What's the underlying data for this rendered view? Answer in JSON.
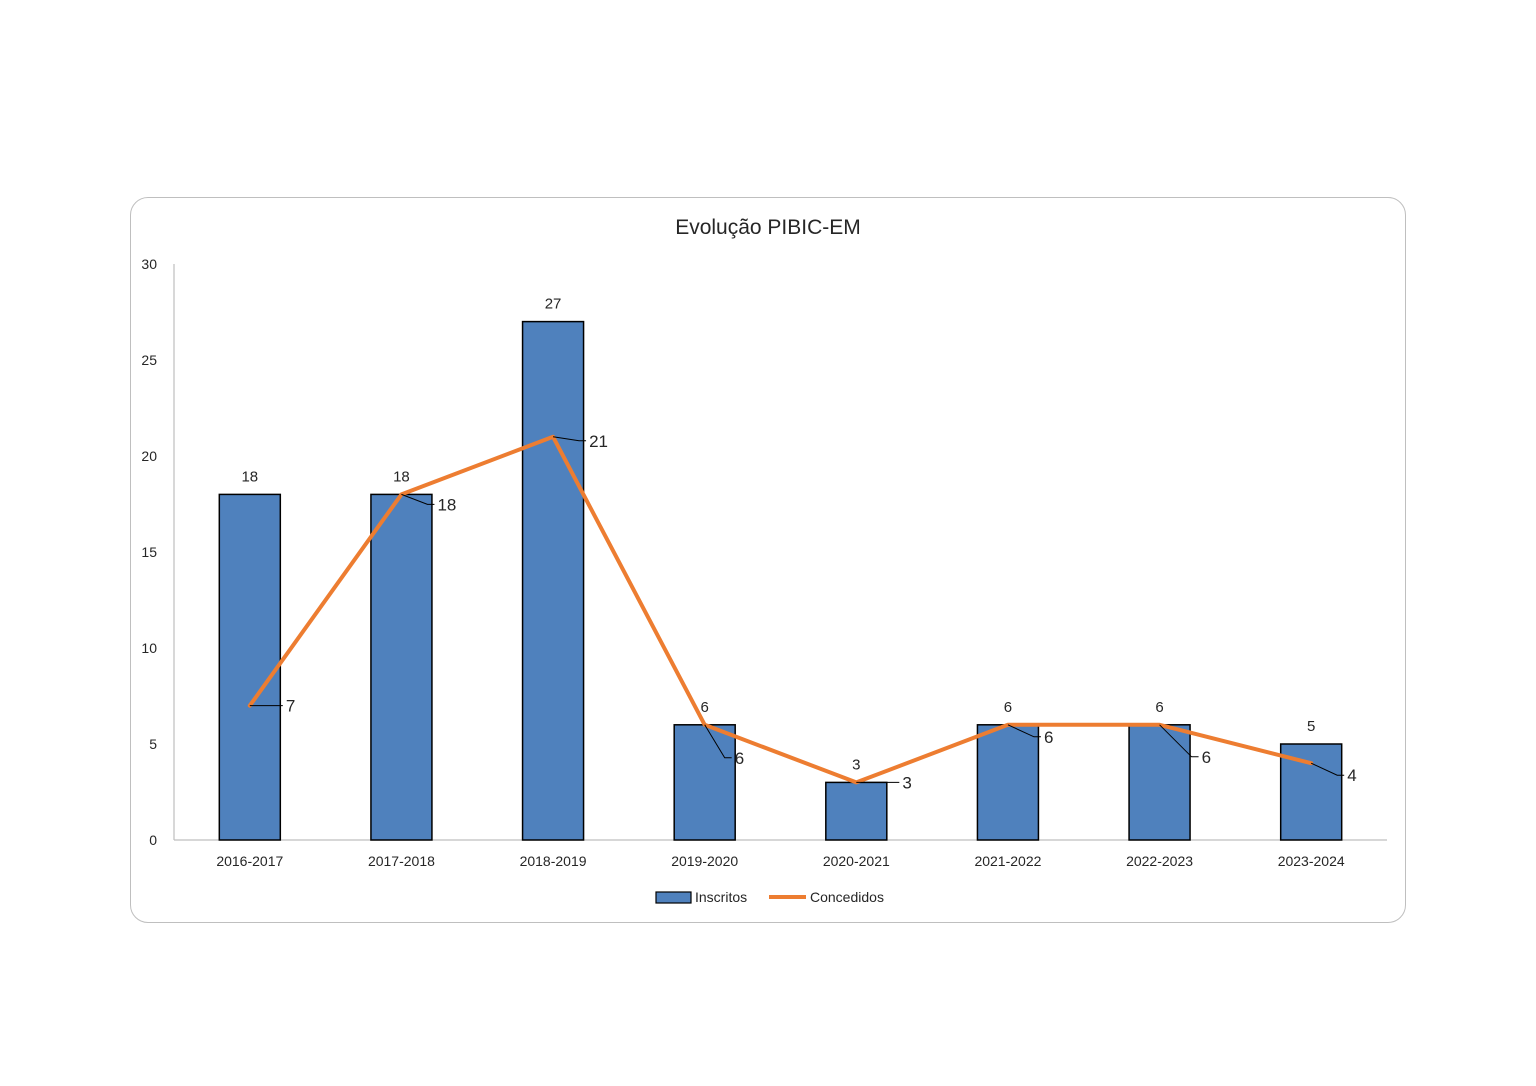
{
  "chart_data": {
    "type": "bar",
    "title": "Evolução PIBIC-EM",
    "xlabel": "",
    "ylabel": "",
    "ylim": [
      0,
      30
    ],
    "yticks": [
      "0",
      "5",
      "10",
      "15",
      "20",
      "25",
      "30"
    ],
    "categories": [
      "2016-2017",
      "2017-2018",
      "2018-2019",
      "2019-2020",
      "2020-2021",
      "2021-2022",
      "2022-2023",
      "2023-2024"
    ],
    "series": [
      {
        "name": "Inscritos",
        "type": "bar",
        "color": "#4f81bd",
        "values": [
          18,
          18,
          27,
          6,
          3,
          6,
          6,
          5
        ]
      },
      {
        "name": "Concedidos",
        "type": "line",
        "color": "#ed7d31",
        "values": [
          7,
          18,
          21,
          6,
          3,
          6,
          6,
          4
        ]
      }
    ],
    "grid": false,
    "legend": "bottom"
  }
}
